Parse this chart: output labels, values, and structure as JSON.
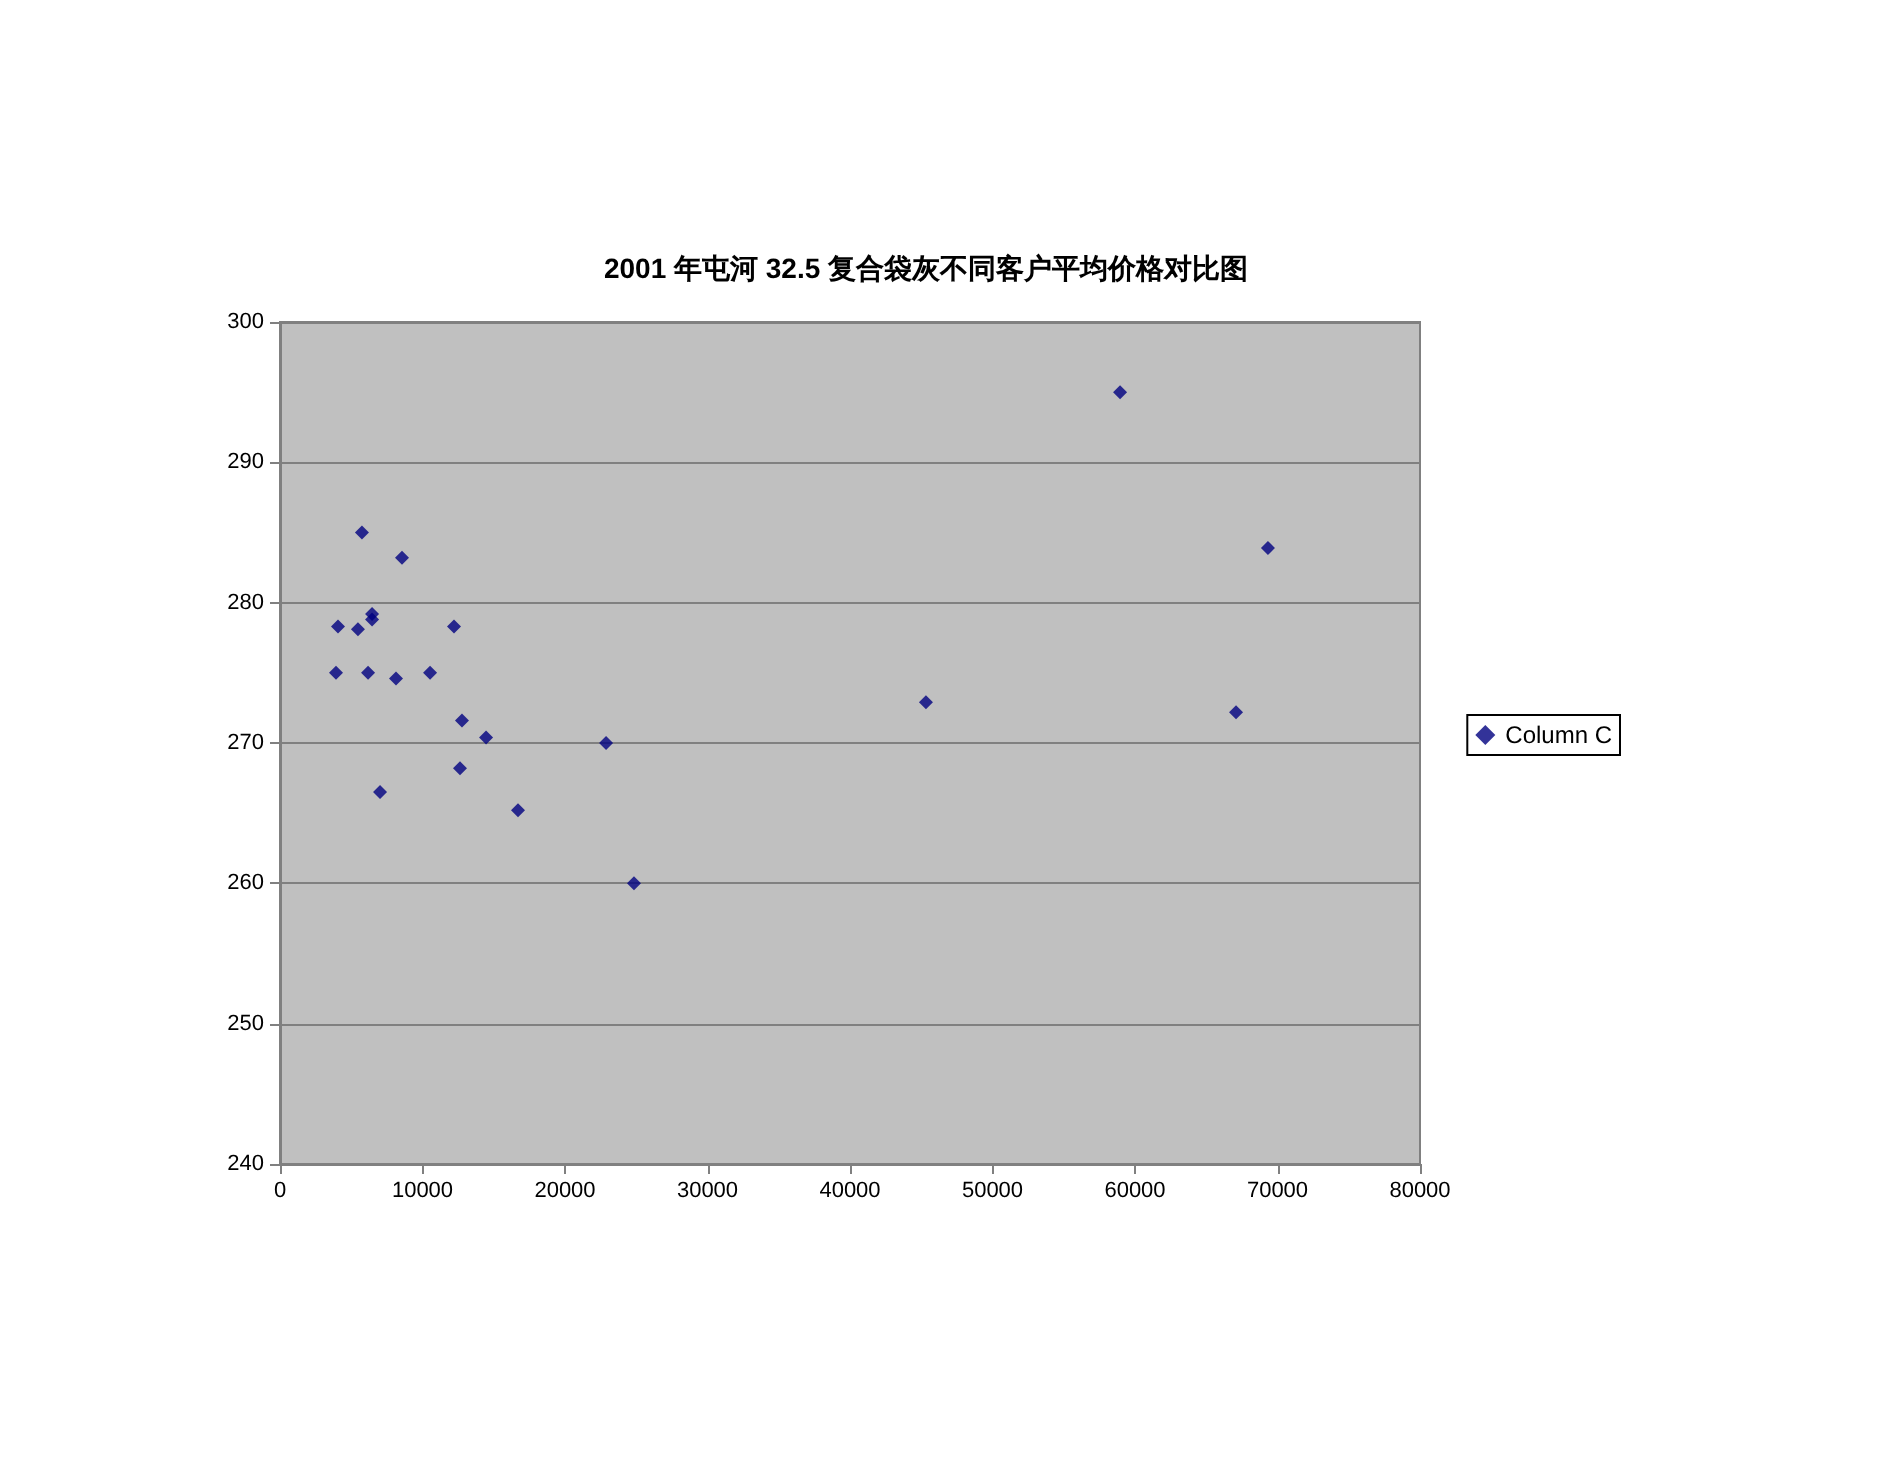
{
  "chart_data": {
    "type": "scatter",
    "title": "2001 年屯河 32.5 复合袋灰不同客户平均价格对比图",
    "series": [
      {
        "name": "Column C",
        "color": "#000080",
        "x": [
          5750,
          8560,
          6460,
          6460,
          4070,
          5470,
          12210,
          3930,
          6180,
          8140,
          10530,
          12770,
          14460,
          22880,
          12630,
          7020,
          16700,
          24840,
          45330,
          58950,
          67090,
          69330
        ],
        "values": [
          285,
          283.2,
          279.2,
          278.8,
          278.3,
          278.1,
          278.3,
          275,
          275,
          274.6,
          275,
          271.6,
          270.4,
          270,
          268.2,
          266.5,
          265.2,
          260,
          272.9,
          295,
          272.2,
          283.9
        ]
      }
    ],
    "xlim": [
      0,
      80000
    ],
    "xticks": [
      0,
      10000,
      20000,
      30000,
      40000,
      50000,
      60000,
      70000,
      80000
    ],
    "ylim": [
      240,
      300
    ],
    "yticks": [
      240,
      250,
      260,
      270,
      280,
      290,
      300
    ],
    "grid": "y",
    "legend": "right",
    "marker": "diamond"
  }
}
